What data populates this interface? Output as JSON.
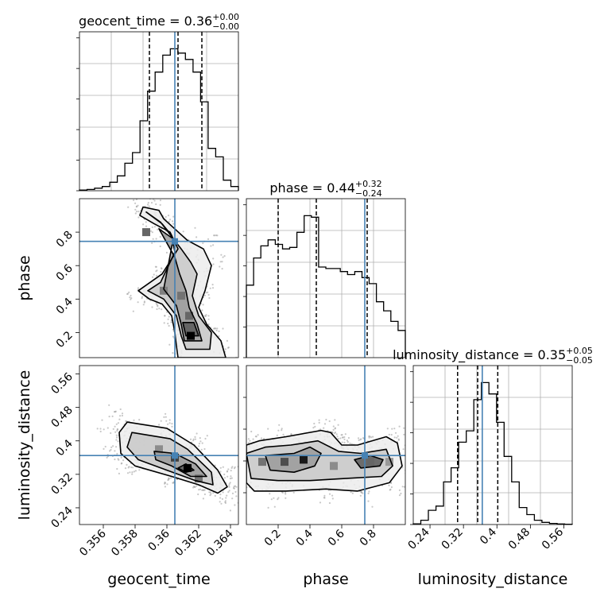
{
  "figure": {
    "type": "corner-plot",
    "parameters": [
      "geocent_time",
      "phase",
      "luminosity_distance"
    ]
  },
  "colors": {
    "truth": "#4682b4",
    "histogram": "#000000",
    "quantile": "#000000",
    "grid": "#b0b0b0",
    "background": "#ffffff"
  },
  "chart_data": [
    {
      "type": "histogram",
      "parameter": "geocent_time",
      "title_main": "geocent_time = 0.36",
      "title_sup": "+0.00",
      "title_sub": "−0.00",
      "bin_edges_range": [
        0.3545,
        0.3645
      ],
      "counts": [
        0.003,
        0.006,
        0.012,
        0.02,
        0.04,
        0.07,
        0.13,
        0.18,
        0.33,
        0.47,
        0.56,
        0.64,
        0.67,
        0.65,
        0.62,
        0.56,
        0.42,
        0.2,
        0.16,
        0.05,
        0.02
      ],
      "quantiles": [
        0.3589,
        0.3607,
        0.3622
      ],
      "truth": 0.3605,
      "grid": true
    },
    {
      "type": "histogram",
      "parameter": "phase",
      "title_main": "phase = 0.44",
      "title_sup": "+0.32",
      "title_sub": "−0.24",
      "bin_edges_range": [
        0.0,
        1.0
      ],
      "counts": [
        0.48,
        0.66,
        0.74,
        0.78,
        0.75,
        0.72,
        0.73,
        0.83,
        0.94,
        0.93,
        0.6,
        0.59,
        0.59,
        0.57,
        0.55,
        0.57,
        0.53,
        0.49,
        0.37,
        0.31,
        0.24,
        0.18
      ],
      "quantiles": [
        0.2,
        0.44,
        0.76
      ],
      "truth": 0.745,
      "grid": true
    },
    {
      "type": "histogram",
      "parameter": "luminosity_distance",
      "title_main": "luminosity_distance = 0.35",
      "title_sup": "+0.05",
      "title_sub": "−0.05",
      "xticks": [
        0.24,
        0.32,
        0.4,
        0.48,
        0.56
      ],
      "xlabel": "luminosity_distance",
      "bin_edges_range": [
        0.2,
        0.58
      ],
      "counts": [
        0.005,
        0.03,
        0.1,
        0.13,
        0.3,
        0.4,
        0.58,
        0.66,
        0.88,
        1.0,
        0.92,
        0.72,
        0.48,
        0.3,
        0.12,
        0.07,
        0.03,
        0.015,
        0.008,
        0.004,
        0.002
      ],
      "quantiles": [
        0.306,
        0.354,
        0.402
      ],
      "truth": 0.365,
      "grid": true
    },
    {
      "type": "density-2d",
      "x_parameter": "geocent_time",
      "y_parameter": "phase",
      "ylabel": "phase",
      "yticks": [
        0.2,
        0.4,
        0.6,
        0.8
      ],
      "xlim": [
        0.3545,
        0.3645
      ],
      "ylim": [
        0.05,
        1.0
      ],
      "truth": [
        0.3605,
        0.745
      ],
      "contours": [
        [
          [
            0.3585,
            0.95
          ],
          [
            0.3583,
            0.9
          ],
          [
            0.3592,
            0.85
          ],
          [
            0.3602,
            0.8
          ],
          [
            0.3607,
            0.7
          ],
          [
            0.3597,
            0.55
          ],
          [
            0.3582,
            0.45
          ],
          [
            0.3589,
            0.4
          ],
          [
            0.3597,
            0.37
          ],
          [
            0.3603,
            0.3
          ],
          [
            0.3605,
            0.2
          ],
          [
            0.3606,
            0.12
          ],
          [
            0.3607,
            0.05
          ],
          [
            0.3637,
            0.05
          ],
          [
            0.3634,
            0.15
          ],
          [
            0.3625,
            0.25
          ],
          [
            0.362,
            0.35
          ],
          [
            0.3624,
            0.45
          ],
          [
            0.3628,
            0.6
          ],
          [
            0.3623,
            0.7
          ],
          [
            0.3613,
            0.75
          ],
          [
            0.3598,
            0.88
          ],
          [
            0.3595,
            0.93
          ]
        ],
        [
          [
            0.3587,
            0.92
          ],
          [
            0.3597,
            0.85
          ],
          [
            0.3603,
            0.78
          ],
          [
            0.3605,
            0.68
          ],
          [
            0.3596,
            0.5
          ],
          [
            0.3588,
            0.45
          ],
          [
            0.3598,
            0.4
          ],
          [
            0.3606,
            0.3
          ],
          [
            0.3609,
            0.18
          ],
          [
            0.3612,
            0.1
          ],
          [
            0.3627,
            0.1
          ],
          [
            0.3628,
            0.2
          ],
          [
            0.362,
            0.3
          ],
          [
            0.3616,
            0.42
          ],
          [
            0.3619,
            0.55
          ],
          [
            0.3615,
            0.62
          ],
          [
            0.3609,
            0.7
          ],
          [
            0.3596,
            0.86
          ]
        ],
        [
          [
            0.3595,
            0.82
          ],
          [
            0.3604,
            0.76
          ],
          [
            0.3598,
            0.46
          ],
          [
            0.3606,
            0.36
          ],
          [
            0.3609,
            0.25
          ],
          [
            0.3611,
            0.15
          ],
          [
            0.3622,
            0.15
          ],
          [
            0.3619,
            0.25
          ],
          [
            0.3614,
            0.35
          ],
          [
            0.3612,
            0.45
          ],
          [
            0.3608,
            0.55
          ],
          [
            0.3605,
            0.65
          ]
        ],
        [
          [
            0.361,
            0.26
          ],
          [
            0.3612,
            0.18
          ],
          [
            0.362,
            0.18
          ],
          [
            0.3617,
            0.26
          ]
        ]
      ],
      "peaks": [
        [
          0.3615,
          0.18,
          1.0
        ],
        [
          0.3609,
          0.42,
          0.55
        ],
        [
          0.3587,
          0.8,
          0.6
        ],
        [
          0.3598,
          0.45,
          0.5
        ],
        [
          0.3614,
          0.3,
          0.6
        ]
      ]
    },
    {
      "type": "density-2d",
      "x_parameter": "geocent_time",
      "y_parameter": "luminosity_distance",
      "xlabel": "geocent_time",
      "ylabel": "luminosity_distance",
      "xticks": [
        0.356,
        0.358,
        0.36,
        0.362,
        0.364
      ],
      "yticks": [
        0.24,
        0.32,
        0.4,
        0.48,
        0.56
      ],
      "xlim": [
        0.3545,
        0.3645
      ],
      "ylim": [
        0.2,
        0.58
      ],
      "truth": [
        0.3605,
        0.365
      ],
      "contours": [
        [
          [
            0.3575,
            0.445
          ],
          [
            0.36,
            0.43
          ],
          [
            0.3617,
            0.39
          ],
          [
            0.3632,
            0.33
          ],
          [
            0.3638,
            0.29
          ],
          [
            0.3632,
            0.275
          ],
          [
            0.362,
            0.295
          ],
          [
            0.3603,
            0.315
          ],
          [
            0.358,
            0.34
          ],
          [
            0.3571,
            0.37
          ],
          [
            0.357,
            0.42
          ]
        ],
        [
          [
            0.3578,
            0.42
          ],
          [
            0.3602,
            0.405
          ],
          [
            0.3613,
            0.38
          ],
          [
            0.3628,
            0.325
          ],
          [
            0.3629,
            0.295
          ],
          [
            0.3618,
            0.305
          ],
          [
            0.36,
            0.33
          ],
          [
            0.3582,
            0.355
          ],
          [
            0.3575,
            0.385
          ]
        ],
        [
          [
            0.3592,
            0.375
          ],
          [
            0.3605,
            0.37
          ],
          [
            0.3618,
            0.345
          ],
          [
            0.3625,
            0.315
          ],
          [
            0.3615,
            0.315
          ],
          [
            0.3603,
            0.34
          ],
          [
            0.3593,
            0.355
          ]
        ],
        [
          [
            0.3612,
            0.345
          ],
          [
            0.3617,
            0.33
          ],
          [
            0.3612,
            0.325
          ],
          [
            0.3607,
            0.335
          ]
        ]
      ],
      "peaks": [
        [
          0.3613,
          0.335,
          1.0
        ],
        [
          0.3605,
          0.36,
          0.75
        ],
        [
          0.3595,
          0.38,
          0.45
        ],
        [
          0.362,
          0.31,
          0.55
        ]
      ]
    },
    {
      "type": "density-2d",
      "x_parameter": "phase",
      "y_parameter": "luminosity_distance",
      "xlabel": "phase",
      "xticks": [
        0.2,
        0.4,
        0.6,
        0.8
      ],
      "xlim": [
        0.0,
        1.0
      ],
      "ylim": [
        0.2,
        0.58
      ],
      "truth": [
        0.745,
        0.365
      ],
      "contours": [
        [
          [
            0.0,
            0.39
          ],
          [
            0.08,
            0.4
          ],
          [
            0.25,
            0.41
          ],
          [
            0.47,
            0.425
          ],
          [
            0.53,
            0.42
          ],
          [
            0.6,
            0.39
          ],
          [
            0.7,
            0.39
          ],
          [
            0.88,
            0.41
          ],
          [
            0.95,
            0.395
          ],
          [
            0.98,
            0.34
          ],
          [
            0.9,
            0.3
          ],
          [
            0.7,
            0.28
          ],
          [
            0.5,
            0.285
          ],
          [
            0.25,
            0.28
          ],
          [
            0.05,
            0.28
          ],
          [
            0.0,
            0.3
          ]
        ],
        [
          [
            0.0,
            0.37
          ],
          [
            0.12,
            0.385
          ],
          [
            0.28,
            0.39
          ],
          [
            0.45,
            0.4
          ],
          [
            0.58,
            0.375
          ],
          [
            0.72,
            0.37
          ],
          [
            0.88,
            0.38
          ],
          [
            0.92,
            0.34
          ],
          [
            0.85,
            0.315
          ],
          [
            0.62,
            0.31
          ],
          [
            0.4,
            0.305
          ],
          [
            0.2,
            0.305
          ],
          [
            0.03,
            0.31
          ]
        ],
        [
          [
            0.12,
            0.365
          ],
          [
            0.3,
            0.37
          ],
          [
            0.4,
            0.385
          ],
          [
            0.47,
            0.37
          ],
          [
            0.43,
            0.34
          ],
          [
            0.3,
            0.325
          ],
          [
            0.15,
            0.33
          ]
        ],
        [
          [
            0.68,
            0.355
          ],
          [
            0.78,
            0.365
          ],
          [
            0.86,
            0.355
          ],
          [
            0.84,
            0.34
          ],
          [
            0.72,
            0.335
          ]
        ]
      ],
      "peaks": [
        [
          0.36,
          0.355,
          0.9
        ],
        [
          0.24,
          0.35,
          0.7
        ],
        [
          0.1,
          0.35,
          0.55
        ],
        [
          0.78,
          0.35,
          0.6
        ],
        [
          0.55,
          0.34,
          0.45
        ],
        [
          0.9,
          0.35,
          0.4
        ]
      ]
    }
  ]
}
